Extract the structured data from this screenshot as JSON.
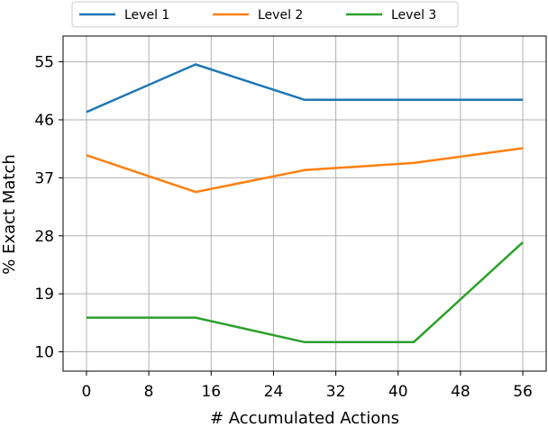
{
  "chart_data": {
    "type": "line",
    "xlabel": "# Accumulated Actions",
    "ylabel": "% Exact Match",
    "xlim": [
      -3,
      59
    ],
    "ylim": [
      7,
      59
    ],
    "xticks": [
      0,
      8,
      16,
      24,
      32,
      40,
      48,
      56
    ],
    "yticks": [
      10,
      19,
      28,
      37,
      46,
      55
    ],
    "grid": true,
    "legend_position": "top",
    "x": [
      0,
      14,
      28,
      42,
      56
    ],
    "series": [
      {
        "name": "Level 1",
        "color": "#1f77b4",
        "values": [
          47.2,
          54.6,
          49.1,
          49.1,
          49.1
        ]
      },
      {
        "name": "Level 2",
        "color": "#ff7f0e",
        "values": [
          40.5,
          34.8,
          38.2,
          39.3,
          41.6
        ]
      },
      {
        "name": "Level 3",
        "color": "#2ca02c",
        "values": [
          15.3,
          15.3,
          11.5,
          11.5,
          27.0
        ]
      }
    ]
  }
}
